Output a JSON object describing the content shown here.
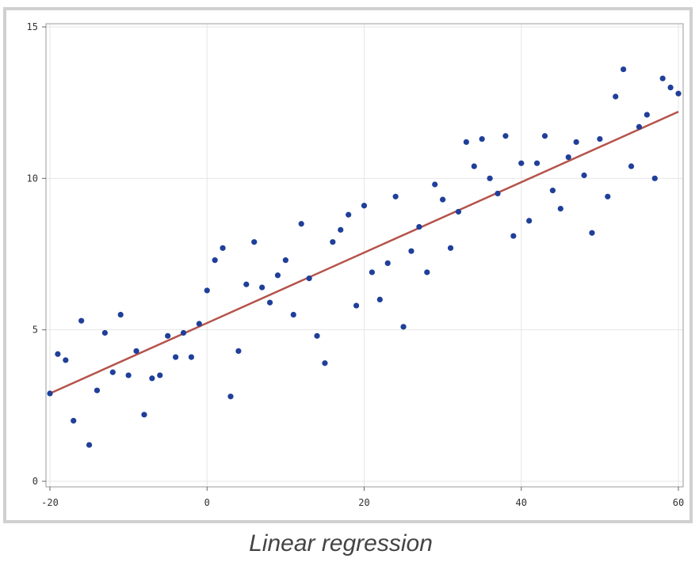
{
  "caption": "Linear regression",
  "chart_data": {
    "type": "scatter",
    "title": "",
    "xlabel": "",
    "ylabel": "",
    "xlim": [
      -20,
      60
    ],
    "ylim": [
      0,
      15
    ],
    "x_ticks": [
      -20,
      0,
      20,
      40,
      60
    ],
    "y_ticks": [
      0,
      5,
      10,
      15
    ],
    "grid": true,
    "legend": "none",
    "point_color": "#1f3f99",
    "line_color": "#b5534a",
    "points": [
      [
        -20,
        2.9
      ],
      [
        -19,
        4.2
      ],
      [
        -18,
        4.0
      ],
      [
        -17,
        2.0
      ],
      [
        -16,
        5.3
      ],
      [
        -15,
        1.2
      ],
      [
        -14,
        3.0
      ],
      [
        -13,
        4.9
      ],
      [
        -12,
        3.6
      ],
      [
        -11,
        5.5
      ],
      [
        -10,
        3.5
      ],
      [
        -9,
        4.3
      ],
      [
        -8,
        2.2
      ],
      [
        -7,
        3.4
      ],
      [
        -6,
        3.5
      ],
      [
        -5,
        4.8
      ],
      [
        -4,
        4.1
      ],
      [
        -3,
        4.9
      ],
      [
        -2,
        4.1
      ],
      [
        -1,
        5.2
      ],
      [
        0,
        6.3
      ],
      [
        1,
        7.3
      ],
      [
        2,
        7.7
      ],
      [
        3,
        2.8
      ],
      [
        4,
        4.3
      ],
      [
        5,
        6.5
      ],
      [
        6,
        7.9
      ],
      [
        7,
        6.4
      ],
      [
        8,
        5.9
      ],
      [
        9,
        6.8
      ],
      [
        10,
        7.3
      ],
      [
        11,
        5.5
      ],
      [
        12,
        8.5
      ],
      [
        13,
        6.7
      ],
      [
        14,
        4.8
      ],
      [
        15,
        3.9
      ],
      [
        16,
        7.9
      ],
      [
        17,
        8.3
      ],
      [
        18,
        8.8
      ],
      [
        19,
        5.8
      ],
      [
        20,
        9.1
      ],
      [
        21,
        6.9
      ],
      [
        22,
        6.0
      ],
      [
        23,
        7.2
      ],
      [
        24,
        9.4
      ],
      [
        25,
        5.1
      ],
      [
        26,
        7.6
      ],
      [
        27,
        8.4
      ],
      [
        28,
        6.9
      ],
      [
        29,
        9.8
      ],
      [
        30,
        9.3
      ],
      [
        31,
        7.7
      ],
      [
        32,
        8.9
      ],
      [
        33,
        11.2
      ],
      [
        34,
        10.4
      ],
      [
        35,
        11.3
      ],
      [
        36,
        10.0
      ],
      [
        37,
        9.5
      ],
      [
        38,
        11.4
      ],
      [
        39,
        8.1
      ],
      [
        40,
        10.5
      ],
      [
        41,
        8.6
      ],
      [
        42,
        10.5
      ],
      [
        43,
        11.4
      ],
      [
        44,
        9.6
      ],
      [
        45,
        9.0
      ],
      [
        46,
        10.7
      ],
      [
        47,
        11.2
      ],
      [
        48,
        10.1
      ],
      [
        49,
        8.2
      ],
      [
        50,
        11.3
      ],
      [
        51,
        9.4
      ],
      [
        52,
        12.7
      ],
      [
        53,
        13.6
      ],
      [
        54,
        10.4
      ],
      [
        55,
        11.7
      ],
      [
        56,
        12.1
      ],
      [
        57,
        10.0
      ],
      [
        58,
        13.3
      ],
      [
        59,
        13.0
      ],
      [
        60,
        12.8
      ]
    ],
    "regression_line": {
      "x": [
        -20,
        60
      ],
      "y": [
        2.9,
        12.2
      ]
    }
  }
}
